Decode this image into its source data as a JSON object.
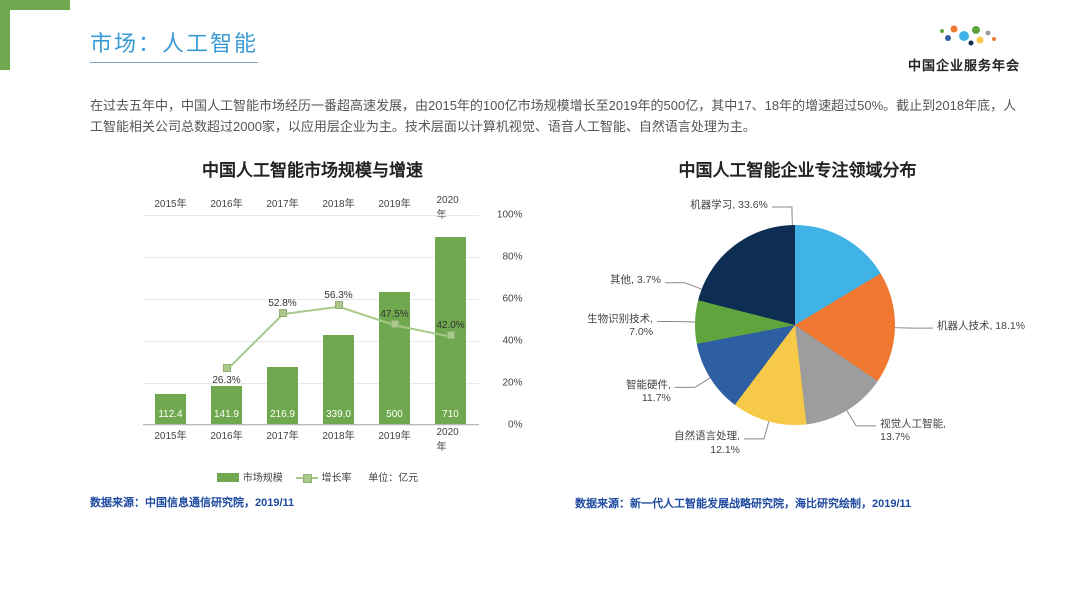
{
  "header": {
    "title": "市场：人工智能",
    "logo_text": "中国企业服务年会"
  },
  "paragraph": "在过去五年中，中国人工智能市场经历一番超高速发展，由2015年的100亿市场规模增长至2019年的500亿，其中17、18年的增速超过50%。截止到2018年底，人工智能相关公司总数超过2000家，以应用层企业为主。技术层面以计算机视觉、语音人工智能、自然语言处理为主。",
  "bar_chart": {
    "type": "bar+line",
    "title": "中国人工智能市场规模与增速",
    "categories": [
      "2015年",
      "2016年",
      "2017年",
      "2018年",
      "2019年",
      "2020年"
    ],
    "bar_values": [
      112.4,
      141.9,
      216.9,
      339.0,
      500,
      710
    ],
    "bar_color": "#6fa84f",
    "bar_width_ratio": 0.56,
    "y_bar_max": 800,
    "line_values_pct": [
      null,
      26.3,
      52.8,
      56.3,
      47.5,
      42.0
    ],
    "line_value_labels": [
      null,
      "26.3%",
      "52.8%",
      "56.3%",
      "47.5%",
      "42.0%"
    ],
    "line_color": "#a9c88a",
    "line_marker": "square",
    "right_axis": {
      "min": 0,
      "max": 100,
      "step": 20,
      "fmt": "%"
    },
    "legend": {
      "bar": "市场规模",
      "line": "增长率",
      "unit": "单位：亿元"
    },
    "source": "数据来源：中国信息通信研究院，2019/11",
    "background_color": "#ffffff",
    "grid_color": "#e8e8e8",
    "axis_color": "#b8b8b8",
    "label_fontsize": 10
  },
  "pie_chart": {
    "type": "pie",
    "title": "中国人工智能企业专注领域分布",
    "slices": [
      {
        "label": "机器学习",
        "pct": 33.6,
        "color": "#3fb3e6"
      },
      {
        "label": "机器人技术",
        "pct": 18.1,
        "color": "#f07830"
      },
      {
        "label": "视觉人工智能",
        "pct": 13.7,
        "color": "#9d9d9d"
      },
      {
        "label": "自然语言处理",
        "pct": 12.1,
        "color": "#f7c948"
      },
      {
        "label": "智能硬件",
        "pct": 11.7,
        "color": "#2e5fa3"
      },
      {
        "label": "生物识别技术",
        "pct": 7.0,
        "color": "#5fa43c"
      },
      {
        "label": "其他",
        "pct": 3.7,
        "color": "#0d2e52"
      }
    ],
    "start_angle_deg": -62,
    "label_fontsize": 10.5,
    "leader_color": "#888888",
    "source": "数据来源：新一代人工智能发展战略研究院，海比研究绘制，2019/11"
  },
  "accent_color": "#6fa84f",
  "title_color": "#3a9bd4",
  "logo_dot_colors": [
    "#f07830",
    "#5fa43c",
    "#2e5fa3",
    "#3fb3e6",
    "#9d9d9d",
    "#f7c948"
  ]
}
